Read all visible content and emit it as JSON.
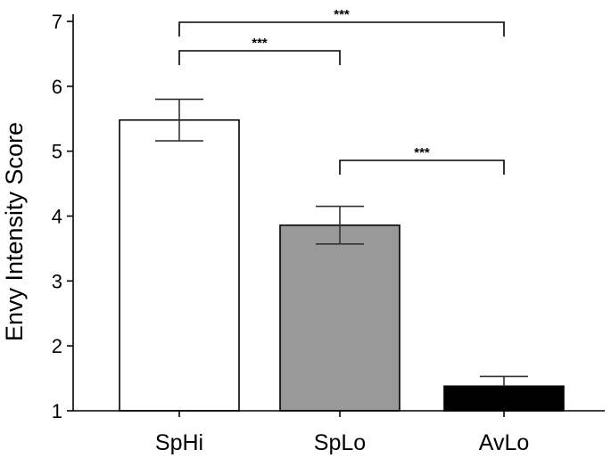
{
  "chart_data": {
    "type": "bar",
    "title": "",
    "xlabel": "",
    "ylabel": "Envy Intensity Score",
    "ylim": [
      1,
      7
    ],
    "yticks": [
      1,
      2,
      3,
      4,
      5,
      6,
      7
    ],
    "grid": false,
    "categories": [
      "SpHi",
      "SpLo",
      "AvLo"
    ],
    "values": [
      5.48,
      3.86,
      1.38
    ],
    "error": [
      0.32,
      0.29,
      0.15
    ],
    "bar_colors": [
      "#ffffff",
      "#999999",
      "#000000"
    ],
    "error_bar_style": [
      "both",
      "both",
      "upper"
    ],
    "significance": [
      {
        "from": 0,
        "to": 2,
        "label": "***"
      },
      {
        "from": 0,
        "to": 1,
        "label": "***"
      },
      {
        "from": 1,
        "to": 2,
        "label": "***"
      }
    ]
  }
}
